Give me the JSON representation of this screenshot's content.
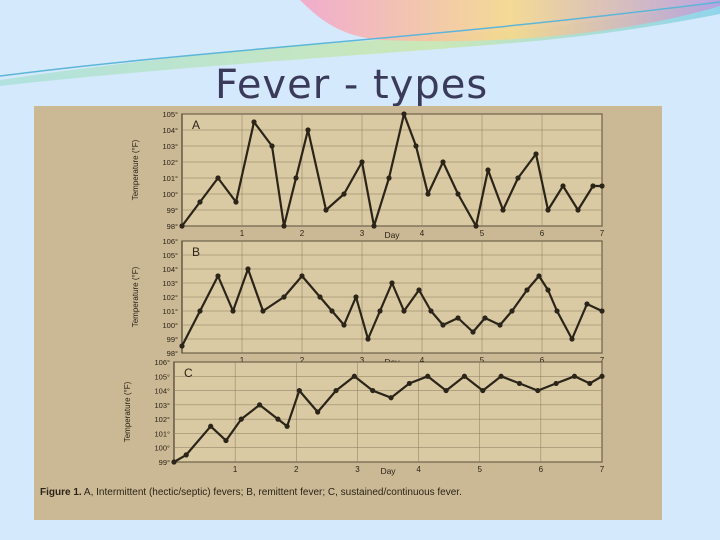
{
  "slide": {
    "title": "Fever - types",
    "colors": {
      "background": "#d4e9fb",
      "scan": "#cbb894",
      "plot": "#d9caa4",
      "line": "#2b2418"
    }
  },
  "caption": {
    "figure_label": "Figure 1.",
    "text": "A, Intermittent (hectic/septic) fevers; B, remittent fever; C, sustained/continuous fever."
  },
  "chart_data": [
    {
      "type": "line",
      "panel_label": "A",
      "ylabel": "Temperature (°F)",
      "xlabel": "Day",
      "ylim": [
        98,
        105
      ],
      "yticks": [
        "98°",
        "99°",
        "100°",
        "101°",
        "102°",
        "103°",
        "104°",
        "105°"
      ],
      "x_ticks": [
        "1",
        "2",
        "3",
        "4",
        "5",
        "6",
        "7"
      ],
      "x": [
        0,
        0.3,
        0.6,
        0.9,
        1.2,
        1.5,
        1.7,
        1.9,
        2.1,
        2.4,
        2.7,
        3.0,
        3.2,
        3.45,
        3.7,
        3.9,
        4.1,
        4.35,
        4.6,
        4.9,
        5.1,
        5.35,
        5.6,
        5.9,
        6.1,
        6.35,
        6.6,
        6.85,
        7.0
      ],
      "y": [
        98.0,
        99.5,
        101.0,
        99.5,
        104.5,
        103.0,
        98.0,
        101.0,
        104.0,
        99.0,
        100.0,
        102.0,
        98.0,
        101.0,
        105.0,
        103.0,
        100.0,
        102.0,
        100.0,
        98.0,
        101.5,
        99.0,
        101.0,
        102.5,
        99.0,
        100.5,
        99.0,
        100.5,
        100.5
      ]
    },
    {
      "type": "line",
      "panel_label": "B",
      "ylabel": "Temperature (°F)",
      "xlabel": "Day",
      "ylim": [
        98,
        106
      ],
      "yticks": [
        "98°",
        "99°",
        "100°",
        "101°",
        "102°",
        "103°",
        "104°",
        "105°",
        "106°"
      ],
      "x_ticks": [
        "1",
        "2",
        "3",
        "4",
        "5",
        "6",
        "7"
      ],
      "x": [
        0,
        0.3,
        0.6,
        0.85,
        1.1,
        1.35,
        1.7,
        2.0,
        2.3,
        2.5,
        2.7,
        2.9,
        3.1,
        3.3,
        3.5,
        3.7,
        3.95,
        4.15,
        4.35,
        4.6,
        4.85,
        5.05,
        5.3,
        5.5,
        5.75,
        5.95,
        6.1,
        6.25,
        6.5,
        6.75,
        7.0
      ],
      "y": [
        98.5,
        101.0,
        103.5,
        101.0,
        104.0,
        101.0,
        102.0,
        103.5,
        102.0,
        101.0,
        100.0,
        102.0,
        99.0,
        101.0,
        103.0,
        101.0,
        102.5,
        101.0,
        100.0,
        100.5,
        99.5,
        100.5,
        100.0,
        101.0,
        102.5,
        103.5,
        102.5,
        101.0,
        99.0,
        101.5,
        101.0
      ]
    },
    {
      "type": "line",
      "panel_label": "C",
      "ylabel": "Temperature (°F)",
      "xlabel": "Day",
      "ylim": [
        99,
        106
      ],
      "yticks": [
        "99°",
        "100°",
        "101°",
        "102°",
        "103°",
        "104°",
        "105°",
        "106°"
      ],
      "x_ticks": [
        "1",
        "2",
        "3",
        "4",
        "5",
        "6",
        "7"
      ],
      "x": [
        0,
        0.2,
        0.6,
        0.85,
        1.1,
        1.4,
        1.7,
        1.85,
        2.05,
        2.35,
        2.65,
        2.95,
        3.25,
        3.55,
        3.85,
        4.15,
        4.45,
        4.75,
        5.05,
        5.35,
        5.65,
        5.95,
        6.25,
        6.55,
        6.8,
        7.0
      ],
      "y": [
        99.0,
        99.5,
        101.5,
        100.5,
        102.0,
        103.0,
        102.0,
        101.5,
        104.0,
        102.5,
        104.0,
        105.0,
        104.0,
        103.5,
        104.5,
        105.0,
        104.0,
        105.0,
        104.0,
        105.0,
        104.5,
        104.0,
        104.5,
        105.0,
        104.5,
        105.0
      ]
    }
  ]
}
